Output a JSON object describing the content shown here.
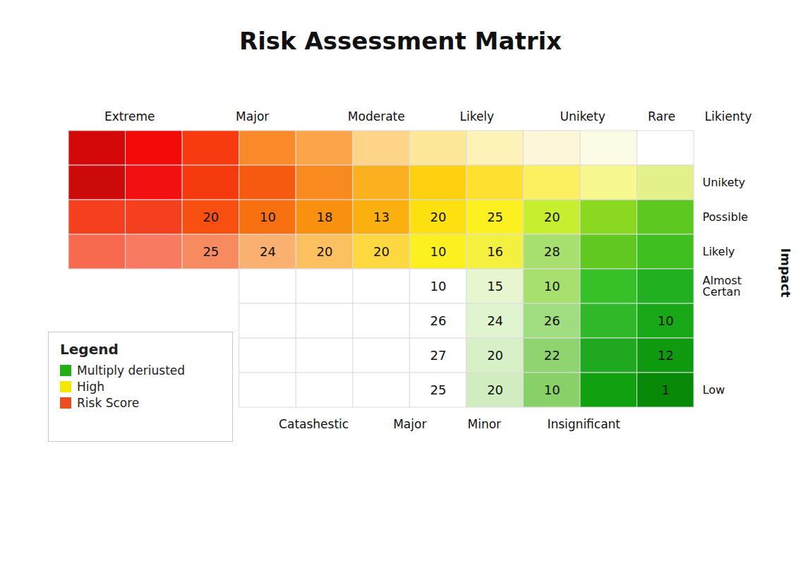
{
  "chart_data": {
    "type": "heatmap",
    "title": "Risk Assessment Matrix",
    "x_labels_top": [
      "Extreme",
      "Major",
      "Moderate",
      "Likely",
      "Unikety",
      "Rare"
    ],
    "x_header": "Likienty",
    "x_labels_bottom": [
      "Catashestic",
      "Major",
      "Minor",
      "Insignificant"
    ],
    "y_label": "Impact",
    "row_labels": [
      null,
      "Unikety",
      "Possible",
      "Likely",
      "Almost Certan",
      null,
      null,
      "Low"
    ],
    "cells": [
      [
        null,
        null,
        null,
        null,
        null,
        null,
        null,
        null,
        null,
        null,
        null
      ],
      [
        null,
        null,
        null,
        null,
        null,
        null,
        null,
        null,
        null,
        null,
        null
      ],
      [
        null,
        null,
        20,
        10,
        18,
        13,
        20,
        25,
        20,
        null,
        null
      ],
      [
        null,
        null,
        25,
        24,
        20,
        20,
        10,
        16,
        28,
        null,
        null
      ],
      [
        null,
        null,
        null,
        null,
        null,
        null,
        10,
        15,
        10,
        null,
        null
      ],
      [
        null,
        null,
        null,
        null,
        null,
        null,
        26,
        24,
        26,
        null,
        10
      ],
      [
        null,
        null,
        null,
        null,
        null,
        null,
        27,
        20,
        22,
        null,
        12
      ],
      [
        null,
        null,
        null,
        null,
        null,
        null,
        25,
        20,
        10,
        null,
        1
      ]
    ],
    "cell_colors": [
      [
        "#d40808",
        "#f50a0a",
        "#f83a10",
        "#fb8a2a",
        "#fca548",
        "#fdd488",
        "#fde89a",
        "#fdf3b8",
        "#fdf6d8",
        "#fbfbe6",
        "#ffffff"
      ],
      [
        "#cc0a0a",
        "#f21010",
        "#f63a10",
        "#f65a10",
        "#f98a20",
        "#fbb020",
        "#fdd010",
        "#fde030",
        "#fdf060",
        "#f8f890",
        "#e4f08a"
      ],
      [
        "#f54020",
        "#f54020",
        "#f85010",
        "#f87010",
        "#fa9010",
        "#fbb010",
        "#fde010",
        "#fdf020",
        "#c8ee30",
        "#8ad820",
        "#5cc820"
      ],
      [
        "#f86a50",
        "#f87a60",
        "#f88a60",
        "#fab070",
        "#fdc060",
        "#fdd840",
        "#fdf020",
        "#f4f040",
        "#a8e070",
        "#60c820",
        "#40c020"
      ],
      [
        null,
        null,
        null,
        "#ffffff",
        "#ffffff",
        "#ffffff",
        "#ffffff",
        "#e8f6d0",
        "#a8e070",
        "#38c028",
        "#20b020"
      ],
      [
        null,
        null,
        null,
        "#ffffff",
        "#ffffff",
        "#ffffff",
        "#ffffff",
        "#e0f4d0",
        "#a0dc80",
        "#30b828",
        "#18a818"
      ],
      [
        null,
        null,
        null,
        "#ffffff",
        "#ffffff",
        "#ffffff",
        "#ffffff",
        "#d8f0c8",
        "#90d470",
        "#20a820",
        "#109a10"
      ],
      [
        null,
        null,
        null,
        "#ffffff",
        "#ffffff",
        "#ffffff",
        "#ffffff",
        "#d0ecc0",
        "#88d068",
        "#10a010",
        "#088a08"
      ]
    ],
    "data_labels": true,
    "legend": "lower left",
    "legend_title": "Legend",
    "legend_entries": [
      {
        "name": "Multiply deriusted",
        "color": "#22b014"
      },
      {
        "name": "High",
        "color": "#f5e800"
      },
      {
        "name": "Risk Score",
        "color": "#f04a20"
      }
    ]
  }
}
